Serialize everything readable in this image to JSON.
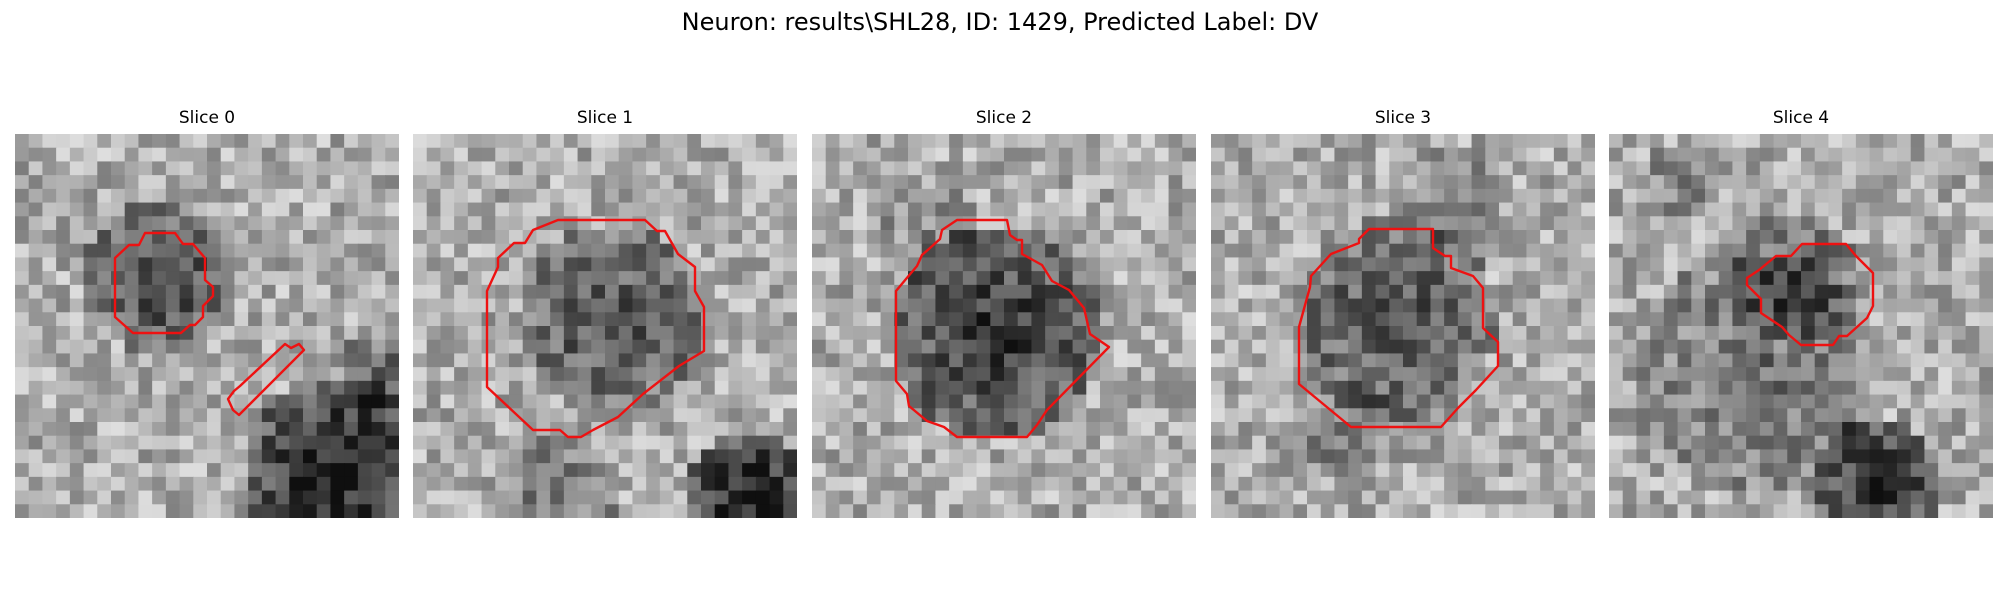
{
  "figure": {
    "title": "Neuron: results\\SHL28, ID: 1429, Predicted Label: DV"
  },
  "panels": [
    {
      "title": "Slice 0"
    },
    {
      "title": "Slice 1"
    },
    {
      "title": "Slice 2"
    },
    {
      "title": "Slice 3"
    },
    {
      "title": "Slice 4"
    }
  ],
  "colors": {
    "contour": "#ee1111",
    "background": "#ffffff"
  },
  "image_grid_size": 28
}
